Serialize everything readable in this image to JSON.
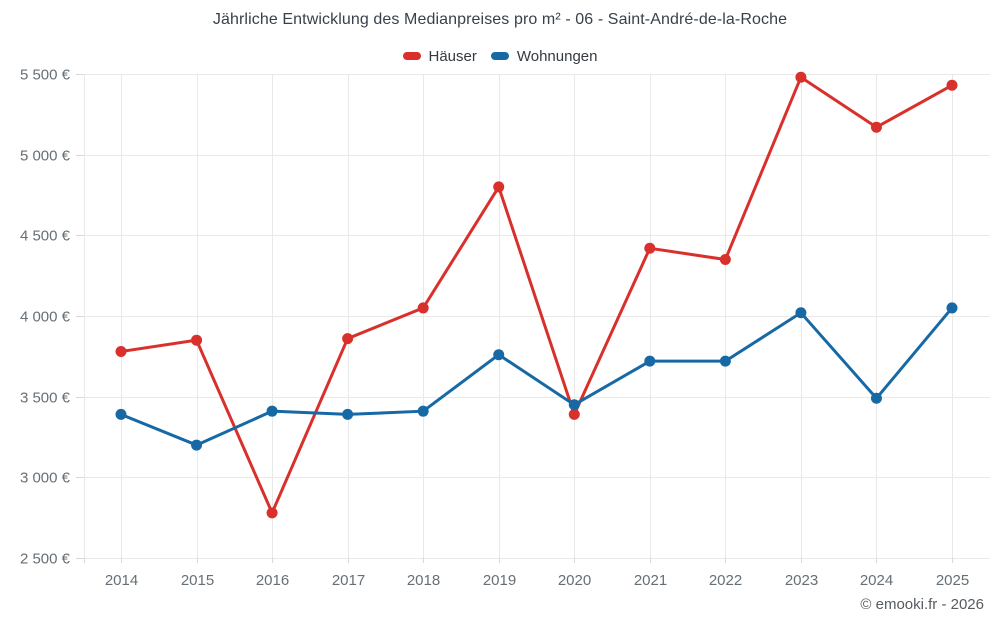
{
  "footer": {
    "text": "© emooki.fr - 2026"
  },
  "colors": {
    "background": "#ffffff",
    "grid": "#e9e9e9",
    "tick": "#d8d8d8",
    "axis_text": "#666f75",
    "title_text": "#38414b",
    "legend_text": "#333a40",
    "footer_text": "#565c61",
    "hauser": "#d9302c",
    "wohnungen": "#1769a5"
  },
  "chart_data": {
    "type": "line",
    "title": "Jährliche Entwicklung des Medianpreises pro m² - 06 - Saint-André-de-la-Roche",
    "categories": [
      "2014",
      "2015",
      "2016",
      "2017",
      "2018",
      "2019",
      "2020",
      "2021",
      "2022",
      "2023",
      "2024",
      "2025"
    ],
    "series": [
      {
        "name": "Häuser",
        "color": "#d9302c",
        "values": [
          3780,
          3850,
          2780,
          3860,
          4050,
          4800,
          3390,
          4420,
          4350,
          5480,
          5170,
          5430
        ]
      },
      {
        "name": "Wohnungen",
        "color": "#1769a5",
        "values": [
          3390,
          3200,
          3410,
          3390,
          3410,
          3760,
          3450,
          3720,
          3720,
          4020,
          3490,
          4050
        ]
      }
    ],
    "xlabel": "",
    "ylabel": "",
    "ylim": [
      2500,
      5500
    ],
    "ytick_step": 500,
    "yticklabels": [
      "2 500 €",
      "3 000 €",
      "3 500 €",
      "4 000 €",
      "4 500 €",
      "5 000 €",
      "5 500 €"
    ],
    "grid": true,
    "legend_position": "top",
    "marker": "circle"
  }
}
